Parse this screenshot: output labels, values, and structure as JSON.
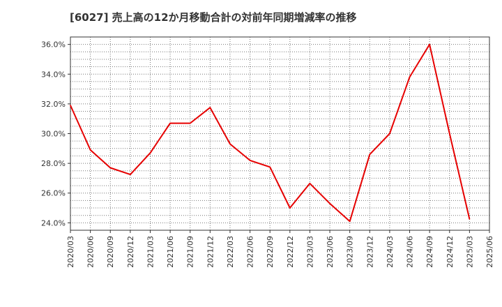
{
  "chart_data": {
    "type": "line",
    "title": "[6027]  売上高の12か月移動合計の対前年同期増減率の推移",
    "xlabel": "",
    "ylabel": "",
    "ylim": [
      23.5,
      36.5
    ],
    "yticks": [
      24.0,
      26.0,
      28.0,
      30.0,
      32.0,
      34.0,
      36.0
    ],
    "ytick_labels": [
      "24.0%",
      "26.0%",
      "28.0%",
      "30.0%",
      "32.0%",
      "34.0%",
      "36.0%"
    ],
    "grid": true,
    "line_color": "#e60000",
    "categories": [
      "2020/03",
      "2020/06",
      "2020/09",
      "2020/12",
      "2021/03",
      "2021/06",
      "2021/09",
      "2021/12",
      "2022/03",
      "2022/06",
      "2022/09",
      "2022/12",
      "2023/03",
      "2023/06",
      "2023/09",
      "2023/12",
      "2024/03",
      "2024/06",
      "2024/09",
      "2024/12",
      "2025/03",
      "2025/06"
    ],
    "series": [
      {
        "name": "増減率",
        "values": [
          31.9,
          28.9,
          27.7,
          27.25,
          28.7,
          30.7,
          30.7,
          31.75,
          29.3,
          28.2,
          27.75,
          25.0,
          26.65,
          25.3,
          24.1,
          28.6,
          30.0,
          33.8,
          36.0,
          30.0,
          24.25,
          null
        ]
      }
    ]
  }
}
